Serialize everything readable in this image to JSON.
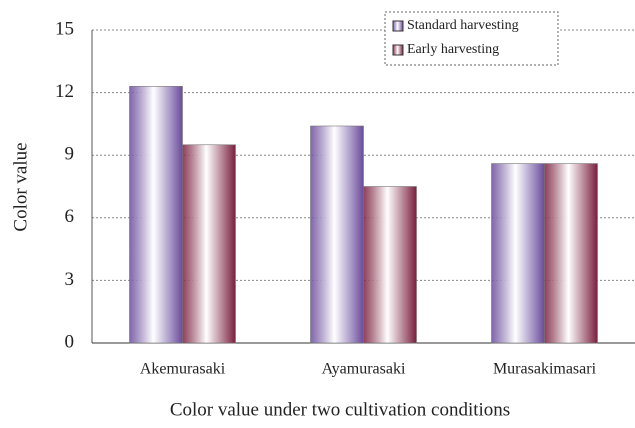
{
  "chart_data": {
    "type": "bar",
    "x_label": "Color value under two cultivation conditions",
    "y_label": "Color value",
    "categories": [
      "Akemurasaki",
      "Ayamurasaki",
      "Murasakimasari"
    ],
    "series": [
      {
        "name": "Standard harvesting",
        "color": "#6a4c9c",
        "values": [
          12.3,
          10.4,
          8.6
        ]
      },
      {
        "name": "Early harvesting",
        "color": "#7a1e3c",
        "values": [
          9.5,
          7.5,
          8.6
        ]
      }
    ],
    "ylim": [
      0,
      15
    ],
    "yticks": [
      0,
      3,
      6,
      9,
      12,
      15
    ],
    "grid": true,
    "legend": "top-right"
  }
}
